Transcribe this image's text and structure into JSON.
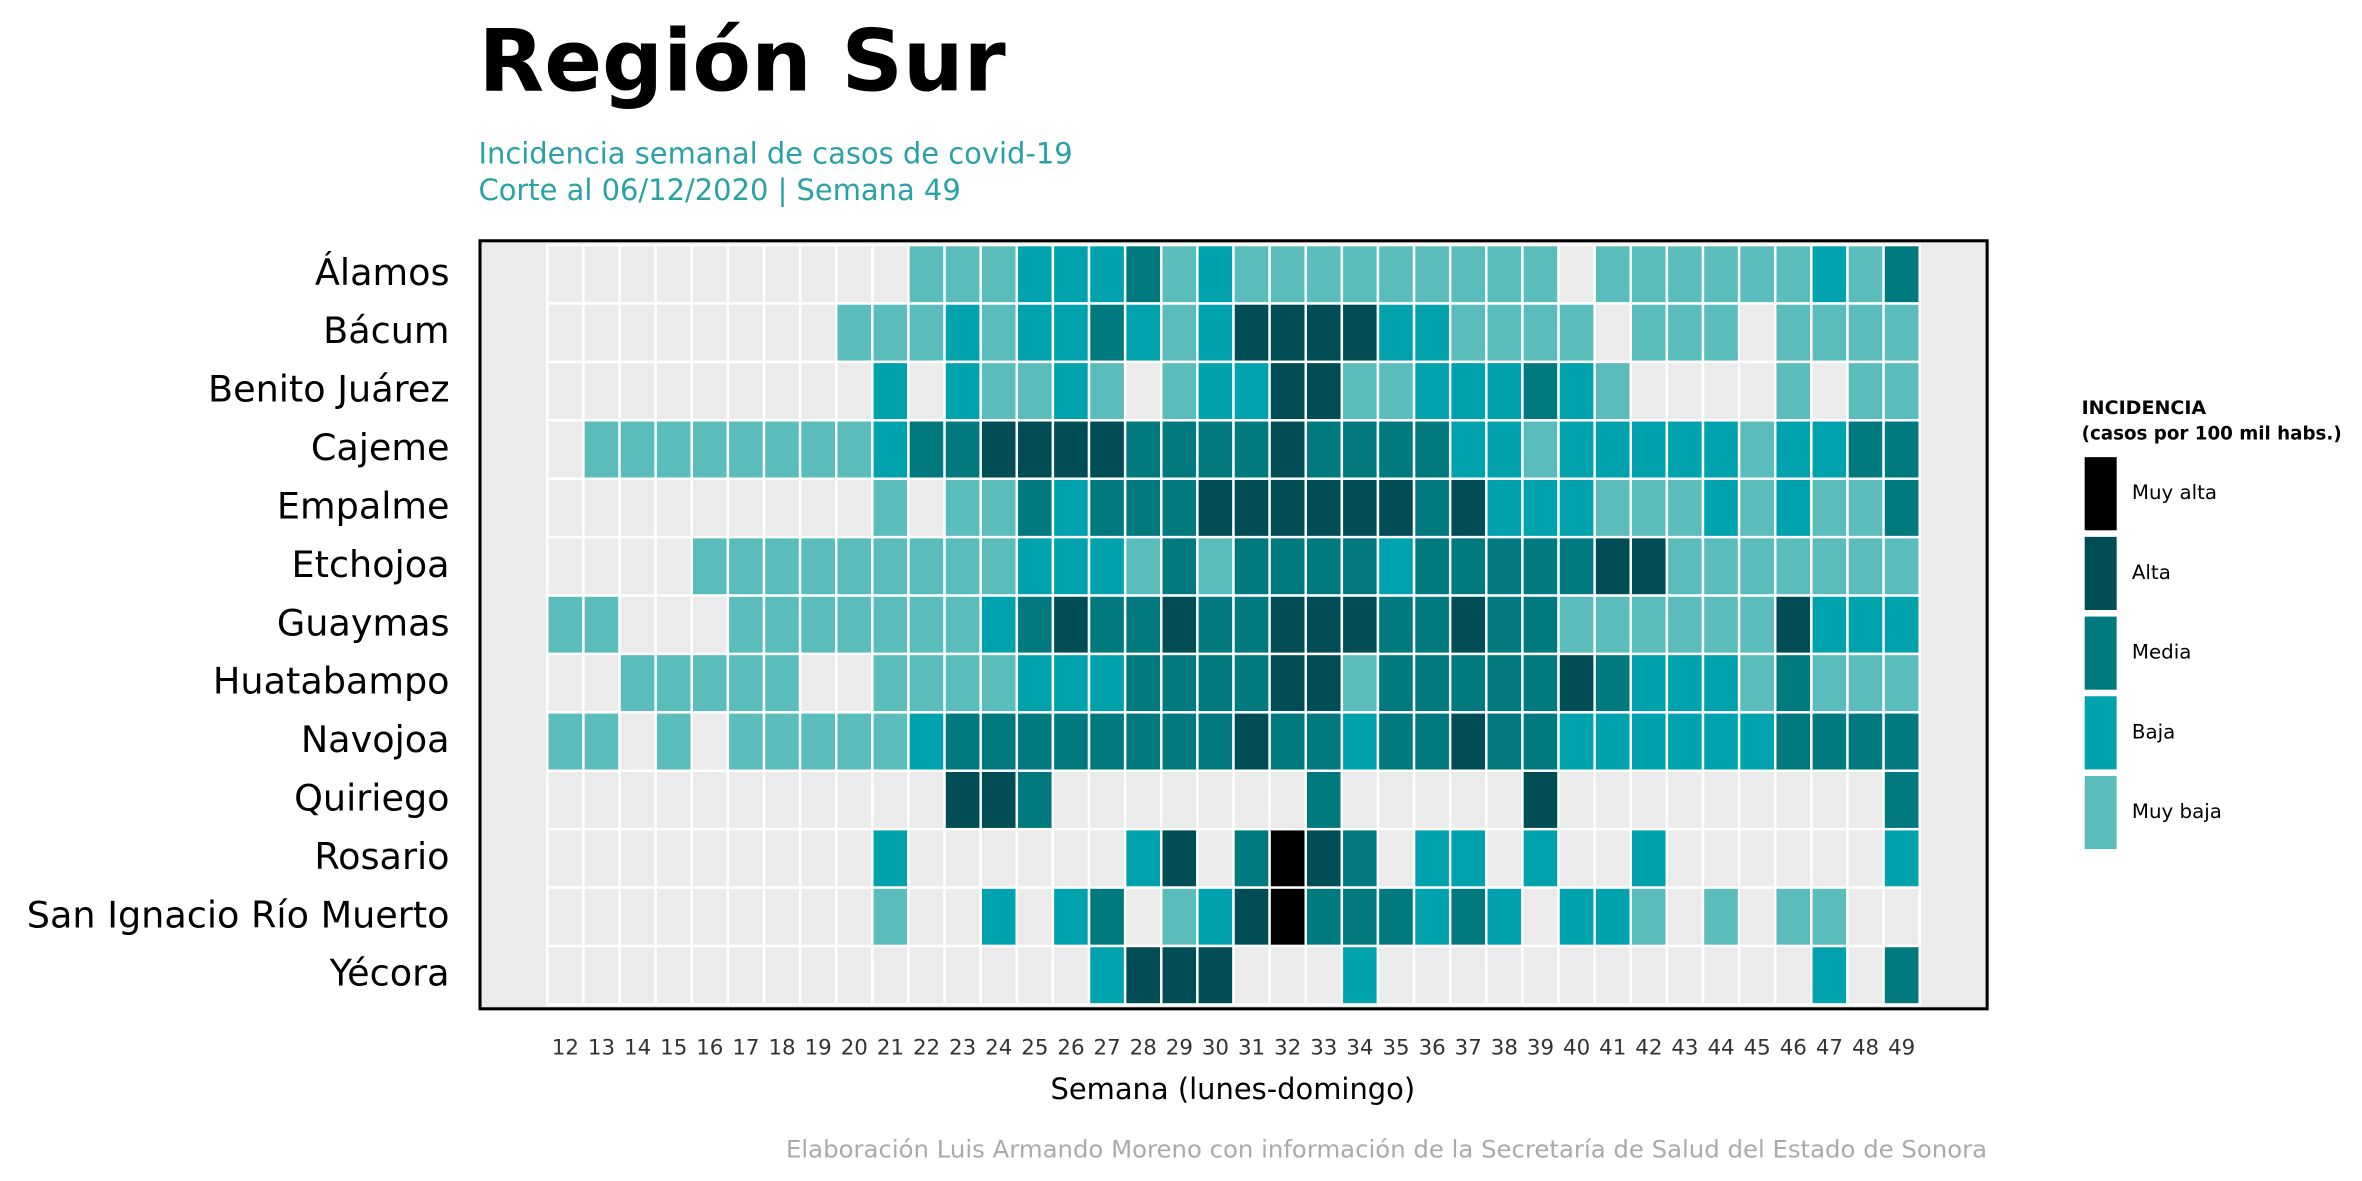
{
  "chart_data": {
    "type": "heatmap",
    "title": "Región Sur",
    "subtitle": [
      "Incidencia semanal de casos de covid-19",
      "Corte al 06/12/2020 | Semana 49"
    ],
    "xlabel": "Semana (lunes-domingo)",
    "caption": "Elaboración Luis Armando Moreno con información de la Secretaría de Salud del Estado de Sonora",
    "legend": {
      "title": "INCIDENCIA",
      "subtitle": "(casos por 100 mil habs.)"
    },
    "null_color": "#ebebeb",
    "levels": [
      {
        "value": 1,
        "name": "Muy baja",
        "color": "#5bbcbc"
      },
      {
        "value": 2,
        "name": "Baja",
        "color": "#00a3ad"
      },
      {
        "value": 3,
        "name": "Media",
        "color": "#007a7e"
      },
      {
        "value": 4,
        "name": "Alta",
        "color": "#004d55"
      },
      {
        "value": 5,
        "name": "Muy alta",
        "color": "#000000"
      }
    ],
    "x": [
      12,
      13,
      14,
      15,
      16,
      17,
      18,
      19,
      20,
      21,
      22,
      23,
      24,
      25,
      26,
      27,
      28,
      29,
      30,
      31,
      32,
      33,
      34,
      35,
      36,
      37,
      38,
      39,
      40,
      41,
      42,
      43,
      44,
      45,
      46,
      47,
      48,
      49
    ],
    "rows": [
      {
        "name": "Álamos",
        "values": [
          null,
          null,
          null,
          null,
          null,
          null,
          null,
          null,
          null,
          null,
          1,
          1,
          1,
          2,
          2,
          2,
          3,
          1,
          2,
          1,
          1,
          1,
          1,
          1,
          1,
          1,
          1,
          1,
          null,
          1,
          1,
          1,
          1,
          1,
          1,
          2,
          1,
          3
        ]
      },
      {
        "name": "Bácum",
        "values": [
          null,
          null,
          null,
          null,
          null,
          null,
          null,
          null,
          1,
          1,
          1,
          2,
          1,
          2,
          2,
          3,
          2,
          1,
          2,
          4,
          4,
          4,
          4,
          2,
          2,
          1,
          1,
          1,
          1,
          null,
          1,
          1,
          1,
          null,
          1,
          1,
          1,
          1
        ]
      },
      {
        "name": "Benito Juárez",
        "values": [
          null,
          null,
          null,
          null,
          null,
          null,
          null,
          null,
          null,
          2,
          null,
          2,
          1,
          1,
          2,
          1,
          null,
          1,
          2,
          2,
          4,
          4,
          1,
          1,
          2,
          2,
          2,
          3,
          2,
          1,
          null,
          null,
          null,
          null,
          1,
          null,
          1,
          1
        ]
      },
      {
        "name": "Cajeme",
        "values": [
          null,
          1,
          1,
          1,
          1,
          1,
          1,
          1,
          1,
          2,
          3,
          3,
          4,
          4,
          4,
          4,
          3,
          3,
          3,
          3,
          4,
          3,
          3,
          3,
          3,
          2,
          2,
          1,
          2,
          2,
          2,
          2,
          2,
          1,
          2,
          2,
          3,
          3
        ]
      },
      {
        "name": "Empalme",
        "values": [
          null,
          null,
          null,
          null,
          null,
          null,
          null,
          null,
          null,
          1,
          null,
          1,
          1,
          3,
          2,
          3,
          3,
          3,
          4,
          4,
          4,
          4,
          4,
          4,
          3,
          4,
          2,
          2,
          2,
          1,
          1,
          1,
          2,
          1,
          2,
          1,
          1,
          3
        ]
      },
      {
        "name": "Etchojoa",
        "values": [
          null,
          null,
          null,
          null,
          1,
          1,
          1,
          1,
          1,
          1,
          1,
          1,
          1,
          2,
          2,
          2,
          1,
          3,
          1,
          3,
          3,
          3,
          3,
          2,
          3,
          3,
          3,
          3,
          3,
          4,
          4,
          1,
          1,
          1,
          1,
          1,
          1,
          1
        ]
      },
      {
        "name": "Guaymas",
        "values": [
          1,
          1,
          null,
          null,
          null,
          1,
          1,
          1,
          1,
          1,
          1,
          1,
          2,
          3,
          4,
          3,
          3,
          4,
          3,
          3,
          4,
          4,
          4,
          3,
          3,
          4,
          3,
          3,
          1,
          1,
          1,
          1,
          1,
          1,
          4,
          2,
          2,
          2
        ]
      },
      {
        "name": "Huatabampo",
        "values": [
          null,
          null,
          1,
          1,
          1,
          1,
          1,
          null,
          null,
          1,
          1,
          1,
          1,
          2,
          2,
          2,
          3,
          3,
          3,
          3,
          4,
          4,
          1,
          3,
          3,
          3,
          3,
          3,
          4,
          3,
          2,
          2,
          2,
          1,
          3,
          1,
          1,
          1
        ]
      },
      {
        "name": "Navojoa",
        "values": [
          1,
          1,
          null,
          1,
          null,
          1,
          1,
          1,
          1,
          1,
          2,
          3,
          3,
          3,
          3,
          3,
          3,
          3,
          3,
          4,
          3,
          3,
          2,
          3,
          3,
          4,
          3,
          3,
          2,
          2,
          2,
          2,
          2,
          2,
          3,
          3,
          3,
          3
        ]
      },
      {
        "name": "Quiriego",
        "values": [
          null,
          null,
          null,
          null,
          null,
          null,
          null,
          null,
          null,
          null,
          null,
          4,
          4,
          3,
          null,
          null,
          null,
          null,
          null,
          null,
          null,
          3,
          null,
          null,
          null,
          null,
          null,
          4,
          null,
          null,
          null,
          null,
          null,
          null,
          null,
          null,
          null,
          3
        ]
      },
      {
        "name": "Rosario",
        "values": [
          null,
          null,
          null,
          null,
          null,
          null,
          null,
          null,
          null,
          2,
          null,
          null,
          null,
          null,
          null,
          null,
          2,
          4,
          null,
          3,
          5,
          4,
          3,
          null,
          2,
          2,
          null,
          2,
          null,
          null,
          2,
          null,
          null,
          null,
          null,
          null,
          null,
          2
        ]
      },
      {
        "name": "San Ignacio Río Muerto",
        "values": [
          null,
          null,
          null,
          null,
          null,
          null,
          null,
          null,
          null,
          1,
          null,
          null,
          2,
          null,
          2,
          3,
          null,
          1,
          2,
          4,
          5,
          3,
          3,
          3,
          2,
          3,
          2,
          null,
          2,
          2,
          1,
          null,
          1,
          null,
          1,
          1,
          null,
          null
        ]
      },
      {
        "name": "Yécora",
        "values": [
          null,
          null,
          null,
          null,
          null,
          null,
          null,
          null,
          null,
          null,
          null,
          null,
          null,
          null,
          null,
          2,
          4,
          4,
          4,
          null,
          null,
          null,
          2,
          null,
          null,
          null,
          null,
          null,
          null,
          null,
          null,
          null,
          null,
          null,
          null,
          2,
          null,
          3
        ]
      }
    ]
  }
}
